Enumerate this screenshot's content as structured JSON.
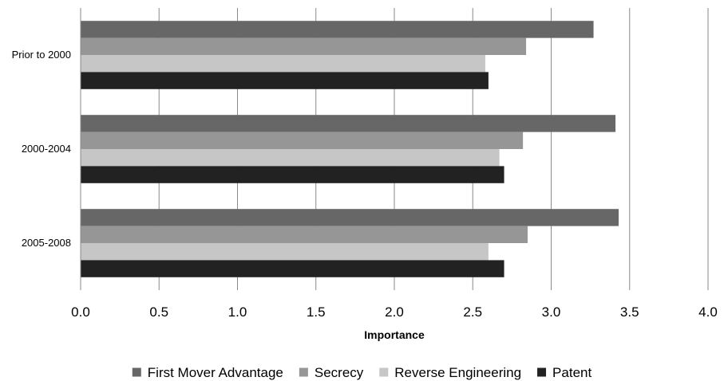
{
  "chart_data": {
    "type": "bar",
    "orientation": "horizontal",
    "categories": [
      "Prior to 2000",
      "2000-2004",
      "2005-2008"
    ],
    "series": [
      {
        "name": "First Mover Advantage",
        "color": "#676767",
        "values": [
          3.27,
          3.41,
          3.43
        ]
      },
      {
        "name": "Secrecy",
        "color": "#969696",
        "values": [
          2.84,
          2.82,
          2.85
        ]
      },
      {
        "name": "Reverse Engineering",
        "color": "#c6c6c6",
        "values": [
          2.58,
          2.67,
          2.6
        ]
      },
      {
        "name": "Patent",
        "color": "#222222",
        "values": [
          2.6,
          2.7,
          2.7
        ]
      }
    ],
    "xlabel": "Importance",
    "xlim": [
      0,
      4
    ],
    "xticks": [
      "0.0",
      "0.5",
      "1.0",
      "1.5",
      "2.0",
      "2.5",
      "3.0",
      "3.5",
      "4.0"
    ],
    "grid": "vertical",
    "legend": "bottom"
  }
}
